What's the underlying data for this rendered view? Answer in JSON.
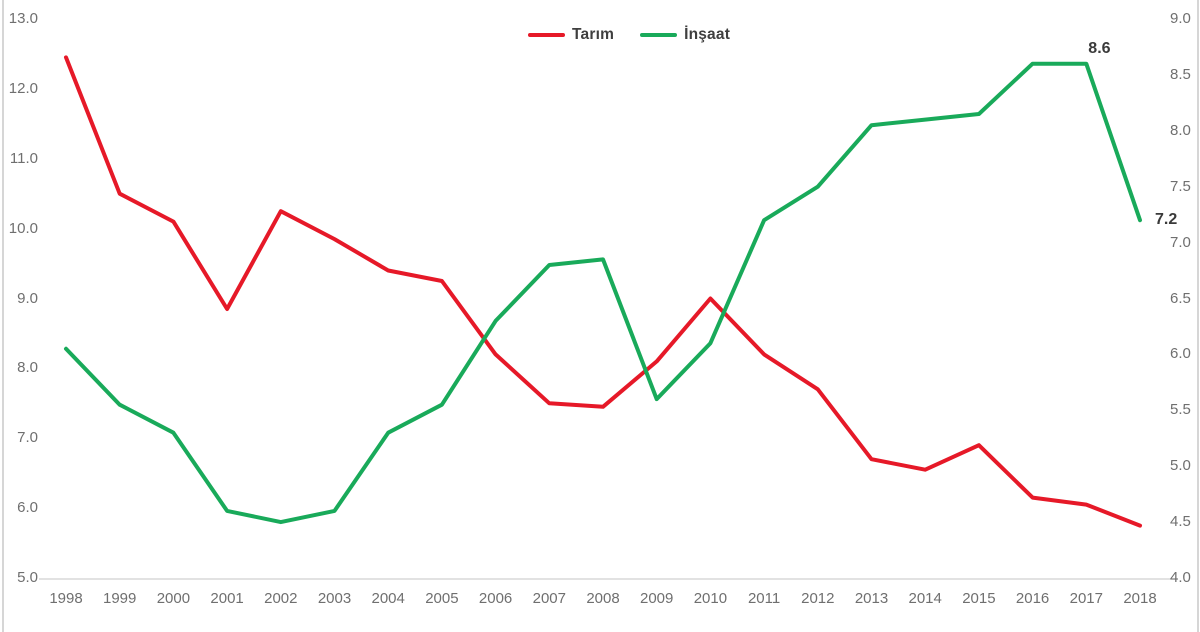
{
  "chart_data": {
    "type": "line",
    "title": "",
    "grid": "off",
    "plot_bg": "#ffffff",
    "x": [
      "1998",
      "1999",
      "2000",
      "2001",
      "2002",
      "2003",
      "2004",
      "2005",
      "2006",
      "2007",
      "2008",
      "2009",
      "2010",
      "2011",
      "2012",
      "2013",
      "2014",
      "2015",
      "2016",
      "2017",
      "2018"
    ],
    "series": [
      {
        "name": "Tarım",
        "axis": "left",
        "color": "#e61928",
        "values": [
          12.45,
          10.5,
          10.1,
          8.85,
          10.25,
          9.85,
          9.4,
          9.25,
          8.2,
          7.5,
          7.45,
          8.1,
          9.0,
          8.2,
          7.7,
          6.7,
          6.55,
          6.9,
          6.15,
          6.05,
          5.75
        ]
      },
      {
        "name": "İnşaat",
        "axis": "right",
        "color": "#19aa5a",
        "values": [
          6.05,
          5.55,
          5.3,
          4.6,
          4.5,
          4.6,
          5.3,
          5.55,
          6.3,
          6.8,
          6.85,
          5.6,
          6.1,
          7.2,
          7.5,
          8.05,
          8.1,
          8.15,
          8.6,
          8.6,
          7.2
        ]
      }
    ],
    "left_axis": {
      "min": 5.0,
      "max": 13.0,
      "ticks": [
        "13.0",
        "12.0",
        "11.0",
        "10.0",
        "9.0",
        "8.0",
        "7.0",
        "6.0",
        "5.0"
      ]
    },
    "right_axis": {
      "min": 4.0,
      "max": 9.0,
      "ticks": [
        "9.0",
        "8.5",
        "8.0",
        "7.5",
        "7.0",
        "6.5",
        "6.0",
        "5.5",
        "5.0",
        "4.5",
        "4.0"
      ]
    },
    "legend": {
      "position": "top-center",
      "items": [
        "Tarım",
        "İnşaat"
      ]
    },
    "annotations": [
      {
        "text": "8.6",
        "year": "2017",
        "series": "İnşaat",
        "position": "above"
      },
      {
        "text": "7.2",
        "year": "2018",
        "series": "İnşaat",
        "position": "right"
      }
    ]
  }
}
